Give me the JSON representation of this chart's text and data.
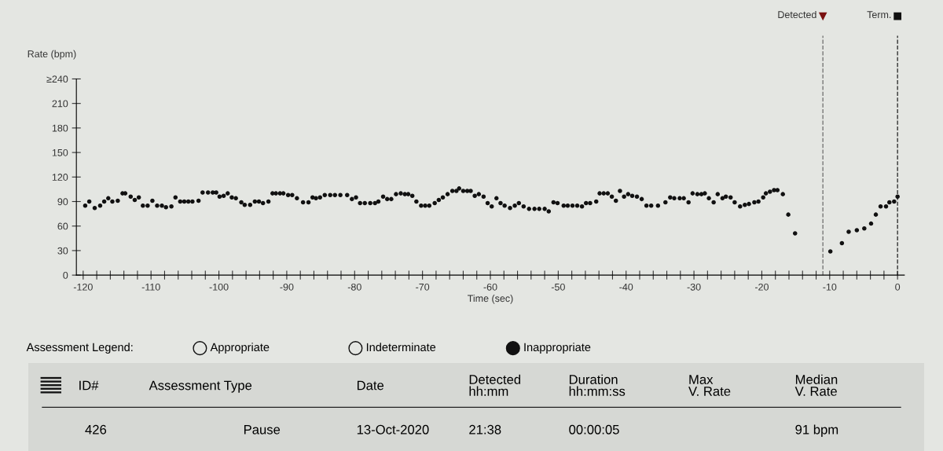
{
  "chart_data": {
    "type": "scatter",
    "xlabel": "Time (sec)",
    "ylabel": "Rate (bpm)",
    "marker": "circle",
    "grid": false,
    "legend": false,
    "xlim": [
      -121,
      1
    ],
    "ylim": [
      0,
      240
    ],
    "xticks": [
      -120,
      {
        "value": -118,
        "label": null
      },
      {
        "value": -116,
        "label": null
      },
      {
        "value": -114,
        "label": null
      },
      {
        "value": -112,
        "label": null
      },
      -110,
      {
        "value": -108,
        "label": null
      },
      {
        "value": -106,
        "label": null
      },
      {
        "value": -104,
        "label": null
      },
      {
        "value": -102,
        "label": null
      },
      -100,
      {
        "value": -98,
        "label": null
      },
      {
        "value": -96,
        "label": null
      },
      {
        "value": -94,
        "label": null
      },
      {
        "value": -92,
        "label": null
      },
      -90,
      {
        "value": -88,
        "label": null
      },
      {
        "value": -86,
        "label": null
      },
      {
        "value": -84,
        "label": null
      },
      {
        "value": -82,
        "label": null
      },
      -80,
      {
        "value": -78,
        "label": null
      },
      {
        "value": -76,
        "label": null
      },
      {
        "value": -74,
        "label": null
      },
      {
        "value": -72,
        "label": null
      },
      -70,
      {
        "value": -68,
        "label": null
      },
      {
        "value": -66,
        "label": null
      },
      {
        "value": -64,
        "label": null
      },
      {
        "value": -62,
        "label": null
      },
      -60,
      {
        "value": -58,
        "label": null
      },
      {
        "value": -56,
        "label": null
      },
      {
        "value": -54,
        "label": null
      },
      {
        "value": -52,
        "label": null
      },
      -50,
      {
        "value": -48,
        "label": null
      },
      {
        "value": -46,
        "label": null
      },
      {
        "value": -44,
        "label": null
      },
      {
        "value": -42,
        "label": null
      },
      -40,
      {
        "value": -38,
        "label": null
      },
      {
        "value": -36,
        "label": null
      },
      {
        "value": -34,
        "label": null
      },
      {
        "value": -32,
        "label": null
      },
      -30,
      {
        "value": -28,
        "label": null
      },
      {
        "value": -26,
        "label": null
      },
      {
        "value": -24,
        "label": null
      },
      {
        "value": -22,
        "label": null
      },
      -20,
      {
        "value": -18,
        "label": null
      },
      {
        "value": -16,
        "label": null
      },
      {
        "value": -14,
        "label": null
      },
      {
        "value": -12,
        "label": null
      },
      -10,
      {
        "value": -8,
        "label": null
      },
      {
        "value": -6,
        "label": null
      },
      {
        "value": -4,
        "label": null
      },
      {
        "value": -2,
        "label": null
      },
      0
    ],
    "yticks": [
      0,
      30,
      60,
      90,
      120,
      150,
      180,
      210,
      {
        "value": 240,
        "label": "≥240"
      }
    ],
    "ref_lines": [
      {
        "axis": "x",
        "value": -11,
        "label": "Detected",
        "color": "#777777",
        "line_style": "dashed"
      },
      {
        "axis": "x",
        "value": 0,
        "label": "Term.",
        "color": "#333333",
        "line_style": "dashed"
      }
    ],
    "series": [
      {
        "color": "#111111",
        "x": [
          -119.7,
          -119.1,
          -118.3,
          -117.5,
          -116.9,
          -116.3,
          -115.7,
          -114.9,
          -114.2,
          -113.8,
          -113.0,
          -112.4,
          -111.8,
          -111.2,
          -110.5,
          -109.8,
          -109.1,
          -108.4,
          -107.8,
          -107.0,
          -106.4,
          -105.7,
          -105.1,
          -104.5,
          -103.9,
          -103.0,
          -102.4,
          -101.6,
          -100.9,
          -100.4,
          -99.9,
          -99.3,
          -98.7,
          -98.1,
          -97.5,
          -96.7,
          -96.2,
          -95.4,
          -94.7,
          -94.1,
          -93.5,
          -92.7,
          -92.1,
          -91.6,
          -91.0,
          -90.5,
          -89.8,
          -89.2,
          -88.5,
          -87.6,
          -86.8,
          -86.2,
          -85.7,
          -85.1,
          -84.4,
          -83.6,
          -82.9,
          -82.1,
          -81.1,
          -80.4,
          -79.8,
          -79.2,
          -78.5,
          -77.7,
          -77.0,
          -76.5,
          -75.8,
          -75.2,
          -74.6,
          -73.9,
          -73.2,
          -72.6,
          -72.1,
          -71.5,
          -70.9,
          -70.2,
          -69.6,
          -69.0,
          -68.2,
          -67.6,
          -67.0,
          -66.3,
          -65.6,
          -65.0,
          -64.6,
          -64.0,
          -63.4,
          -62.9,
          -62.3,
          -61.7,
          -61.0,
          -60.4,
          -59.8,
          -59.1,
          -58.5,
          -57.9,
          -57.1,
          -56.4,
          -55.8,
          -55.1,
          -54.3,
          -53.5,
          -52.8,
          -52.0,
          -51.4,
          -50.7,
          -50.1,
          -49.2,
          -48.6,
          -47.9,
          -47.2,
          -46.5,
          -45.9,
          -45.3,
          -44.4,
          -43.9,
          -43.3,
          -42.7,
          -42.1,
          -41.5,
          -40.9,
          -40.3,
          -39.7,
          -39.1,
          -38.4,
          -37.7,
          -37.0,
          -36.3,
          -35.3,
          -34.2,
          -33.5,
          -32.9,
          -32.1,
          -31.5,
          -30.8,
          -30.2,
          -29.5,
          -28.9,
          -28.4,
          -27.8,
          -27.1,
          -26.5,
          -25.8,
          -25.3,
          -24.6,
          -24.0,
          -23.2,
          -22.5,
          -21.9,
          -21.1,
          -20.5,
          -19.8,
          -19.4,
          -18.8,
          -18.2,
          -17.7,
          -16.9,
          -16.1,
          -15.1,
          -9.9,
          -8.2,
          -7.2,
          -6.0,
          -4.9,
          -3.9,
          -3.2,
          -2.5,
          -1.7,
          -1.2,
          -0.5,
          0
        ],
        "values": [
          85,
          90,
          82,
          85,
          90,
          94,
          90,
          91,
          100,
          100,
          96,
          92,
          95,
          85,
          85,
          91,
          85,
          85,
          83,
          84,
          95,
          90,
          90,
          90,
          90,
          91,
          101,
          101,
          101,
          101,
          96,
          97,
          100,
          95,
          94,
          89,
          86,
          86,
          90,
          90,
          88,
          90,
          100,
          100,
          100,
          100,
          98,
          98,
          94,
          89,
          89,
          95,
          94,
          95,
          98,
          98,
          98,
          98,
          98,
          93,
          95,
          88,
          88,
          88,
          88,
          90,
          96,
          93,
          93,
          99,
          100,
          99,
          99,
          97,
          90,
          85,
          85,
          85,
          88,
          92,
          95,
          99,
          103,
          103,
          106,
          103,
          103,
          103,
          97,
          99,
          96,
          88,
          84,
          94,
          88,
          85,
          82,
          85,
          88,
          84,
          81,
          81,
          81,
          81,
          78,
          89,
          88,
          85,
          85,
          85,
          85,
          84,
          88,
          88,
          90,
          100,
          100,
          100,
          96,
          91,
          103,
          96,
          99,
          97,
          96,
          93,
          85,
          85,
          85,
          89,
          95,
          94,
          94,
          94,
          89,
          100,
          99,
          99,
          100,
          94,
          89,
          99,
          94,
          96,
          95,
          89,
          84,
          86,
          87,
          89,
          90,
          95,
          100,
          102,
          104,
          104,
          99,
          74,
          51,
          29,
          39,
          53,
          55,
          57,
          63,
          74,
          84,
          84,
          89,
          90,
          96
        ]
      }
    ],
    "annotations": [
      "Assessment Legend:",
      "Appropriate",
      "Indeterminate",
      "Inappropriate",
      "ID#",
      "Assessment Type",
      "Date",
      "Detected\nhh:mm",
      "Duration\nhh:mm:ss",
      "Max\nV. Rate",
      "Median\nV. Rate",
      "426",
      "Pause",
      "13-Oct-2020",
      "21:38",
      "00:00:05",
      "91 bpm"
    ]
  }
}
